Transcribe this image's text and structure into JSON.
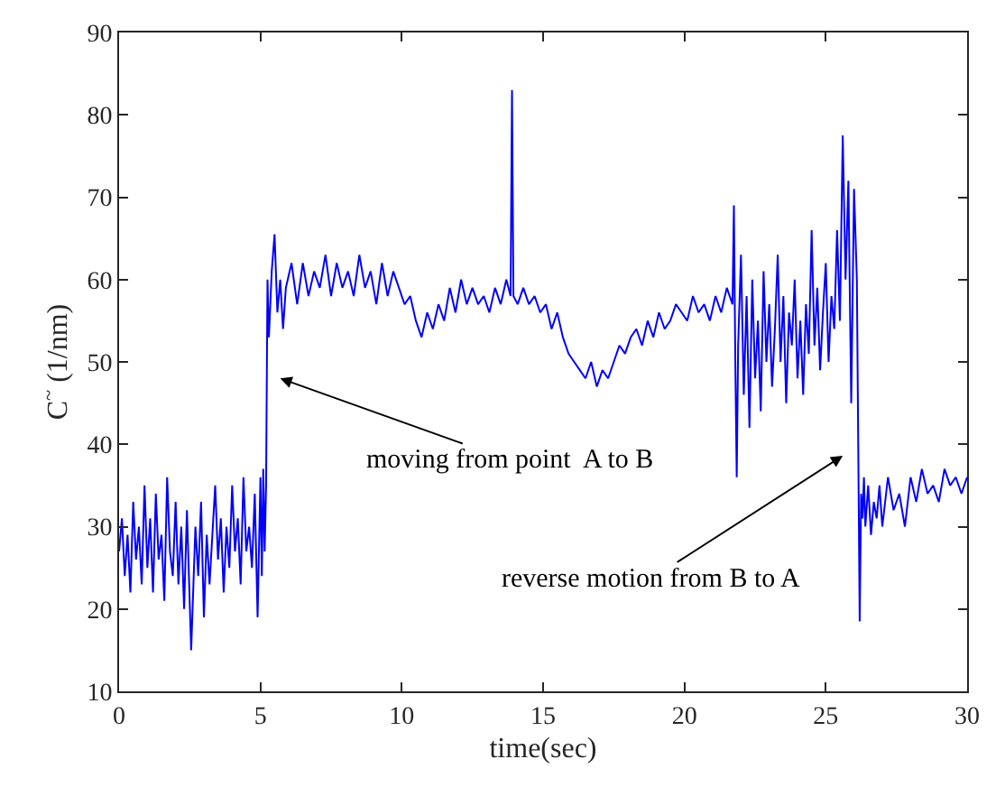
{
  "chart_data": {
    "type": "line",
    "xlabel": "time(sec)",
    "ylabel": "C$^{~}$ (1/nm)",
    "xlim": [
      0,
      30
    ],
    "ylim": [
      10,
      90
    ],
    "xticks": [
      0,
      5,
      10,
      15,
      20,
      25,
      30
    ],
    "yticks": [
      10,
      20,
      30,
      40,
      50,
      60,
      70,
      80,
      90
    ],
    "marker": "none",
    "line_style": "solid",
    "series": [
      {
        "color": "#0000ff",
        "x": [
          0,
          0.1,
          0.2,
          0.3,
          0.4,
          0.5,
          0.6,
          0.7,
          0.8,
          0.9,
          1.0,
          1.1,
          1.2,
          1.3,
          1.4,
          1.5,
          1.6,
          1.7,
          1.8,
          1.9,
          2.0,
          2.1,
          2.2,
          2.3,
          2.4,
          2.55,
          2.7,
          2.8,
          2.9,
          3.0,
          3.1,
          3.2,
          3.4,
          3.5,
          3.6,
          3.7,
          3.8,
          3.9,
          4.0,
          4.1,
          4.2,
          4.3,
          4.4,
          4.5,
          4.6,
          4.7,
          4.8,
          4.9,
          5.0,
          5.05,
          5.1,
          5.15,
          5.2,
          5.25,
          5.3,
          5.4,
          5.5,
          5.6,
          5.7,
          5.8,
          5.9,
          6.1,
          6.3,
          6.5,
          6.7,
          6.9,
          7.1,
          7.3,
          7.5,
          7.7,
          7.9,
          8.1,
          8.3,
          8.5,
          8.7,
          8.9,
          9.1,
          9.3,
          9.5,
          9.7,
          9.9,
          10.1,
          10.3,
          10.5,
          10.7,
          10.9,
          11.1,
          11.3,
          11.5,
          11.7,
          11.9,
          12.1,
          12.3,
          12.5,
          12.7,
          12.9,
          13.1,
          13.3,
          13.5,
          13.7,
          13.85,
          13.9,
          13.95,
          14.1,
          14.3,
          14.5,
          14.7,
          14.9,
          15.1,
          15.3,
          15.5,
          15.7,
          15.9,
          16.1,
          16.3,
          16.5,
          16.7,
          16.9,
          17.1,
          17.3,
          17.5,
          17.7,
          17.9,
          18.1,
          18.3,
          18.5,
          18.7,
          18.9,
          19.1,
          19.3,
          19.5,
          19.7,
          19.9,
          20.1,
          20.3,
          20.5,
          20.7,
          20.9,
          21.1,
          21.3,
          21.5,
          21.7,
          21.75,
          21.8,
          21.85,
          21.9,
          22.0,
          22.1,
          22.2,
          22.3,
          22.4,
          22.5,
          22.6,
          22.7,
          22.8,
          22.9,
          23.0,
          23.1,
          23.2,
          23.3,
          23.4,
          23.5,
          23.6,
          23.7,
          23.8,
          23.9,
          24.0,
          24.1,
          24.2,
          24.3,
          24.4,
          24.5,
          24.6,
          24.7,
          24.8,
          24.9,
          25.0,
          25.1,
          25.2,
          25.3,
          25.4,
          25.5,
          25.6,
          25.7,
          25.8,
          25.9,
          26.0,
          26.1,
          26.2,
          26.25,
          26.3,
          26.35,
          26.4,
          26.5,
          26.6,
          26.7,
          26.8,
          26.9,
          27.0,
          27.2,
          27.4,
          27.6,
          27.8,
          28.0,
          28.2,
          28.4,
          28.6,
          28.8,
          29.0,
          29.2,
          29.4,
          29.6,
          29.8,
          30
        ],
        "values": [
          27,
          31,
          24,
          29,
          22,
          33,
          26,
          30,
          23,
          35,
          25,
          31,
          22,
          34,
          26,
          29,
          21,
          36,
          27,
          24,
          33,
          23,
          30,
          20,
          32,
          15,
          30,
          24,
          33,
          19,
          29,
          23,
          35,
          26,
          31,
          22,
          30,
          25,
          35,
          27,
          31,
          23,
          36,
          27,
          30,
          25,
          34,
          19,
          36,
          24,
          37,
          27,
          35,
          60,
          53,
          61,
          65.5,
          56,
          60,
          54,
          59,
          62,
          57,
          62,
          58,
          61,
          59,
          63,
          58,
          62,
          59,
          61,
          58,
          63,
          59,
          61,
          57,
          62,
          58,
          61,
          59,
          57,
          58,
          55,
          53,
          56,
          54,
          57,
          55,
          59,
          56,
          60,
          57,
          59,
          57,
          58,
          56,
          59,
          57,
          60,
          58,
          83,
          58,
          57,
          59,
          57,
          58,
          56,
          57,
          54,
          56,
          53,
          51,
          50,
          49,
          48,
          50,
          47,
          49,
          48,
          50,
          52,
          51,
          53,
          54,
          52,
          55,
          53,
          56,
          54,
          55,
          57,
          56,
          55,
          58,
          56,
          57,
          55,
          58,
          56,
          59,
          57,
          69,
          50,
          36,
          52,
          63,
          46,
          58,
          42,
          60,
          48,
          55,
          44,
          61,
          50,
          57,
          47,
          54,
          63,
          50,
          58,
          45,
          56,
          52,
          60,
          48,
          55,
          46,
          57,
          51,
          66,
          52,
          59,
          49,
          56,
          62,
          50,
          58,
          54,
          66,
          55,
          77.5,
          60,
          72,
          45,
          71,
          60,
          18.5,
          34,
          31,
          36,
          30,
          35,
          29,
          33,
          31,
          35,
          30,
          36,
          32,
          34,
          30,
          36,
          33,
          37,
          34,
          35,
          33,
          37,
          35,
          36,
          34,
          36
        ]
      }
    ],
    "annotations": [
      "moving from point  A to B",
      "reverse motion from B to A"
    ]
  }
}
